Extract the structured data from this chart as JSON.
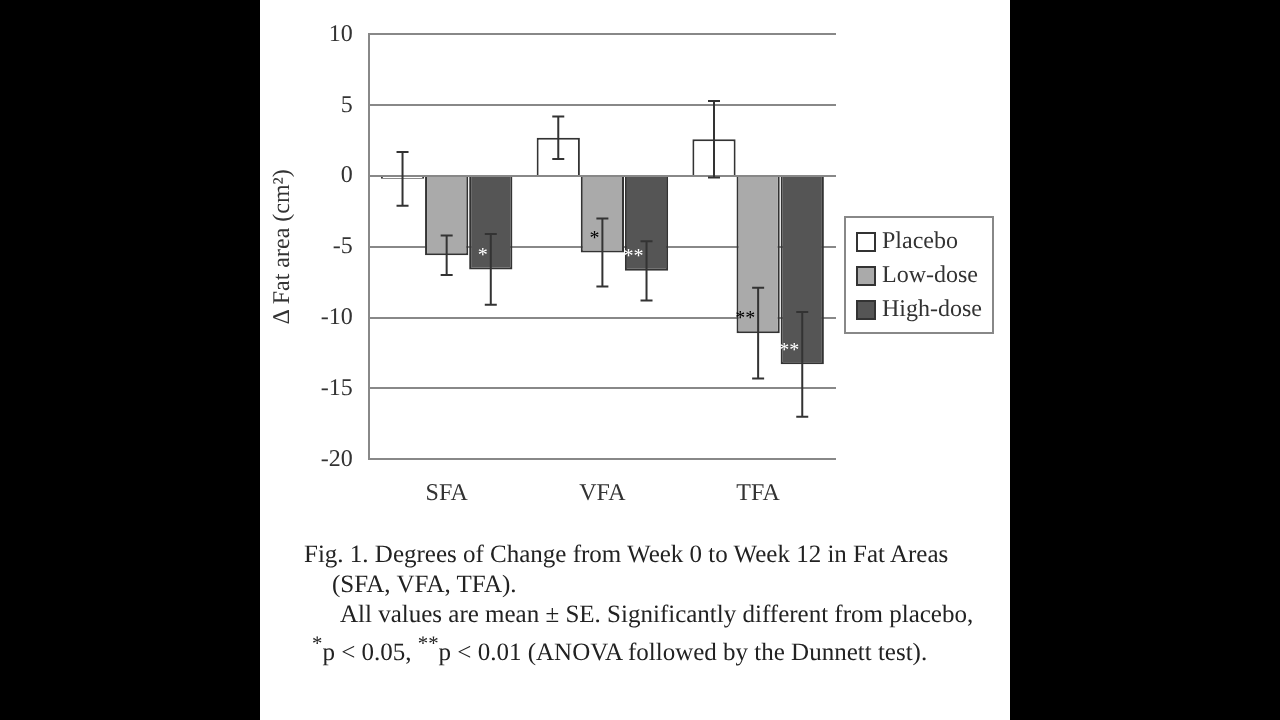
{
  "chart_data": {
    "type": "bar",
    "title": "Fig. 1. Degrees of Change from Week 0 to Week 12 in Fat Areas (SFA, VFA, TFA).",
    "ylabel": "Δ Fat area (cm²)",
    "categories": [
      "SFA",
      "VFA",
      "TFA"
    ],
    "series": [
      {
        "name": "Placebo",
        "color": "#ffffff",
        "values": [
          -0.2,
          2.7,
          2.6
        ],
        "errors": [
          1.9,
          1.5,
          2.7
        ]
      },
      {
        "name": "Low-dose",
        "color": "#aaaaaa",
        "values": [
          -5.6,
          -5.4,
          -11.1
        ],
        "errors": [
          1.4,
          2.4,
          3.2
        ],
        "value_labels": [
          null,
          "*",
          "**"
        ]
      },
      {
        "name": "High-dose",
        "color": "#555555",
        "values": [
          -6.6,
          -6.7,
          -13.3
        ],
        "errors": [
          2.5,
          2.1,
          3.7
        ],
        "value_labels": [
          "*",
          "**",
          "**"
        ]
      }
    ],
    "ylim": [
      -20,
      10
    ],
    "yticks": [
      -20,
      -15,
      -10,
      -5,
      0,
      5,
      10
    ],
    "grid": "y",
    "legend": "right",
    "annotations": [
      "All values are mean ± SE. Significantly different from placebo, $^{*}$p < 0.05, $^{**}$p < 0.01 (ANOVA followed by the Dunnett test)."
    ]
  }
}
